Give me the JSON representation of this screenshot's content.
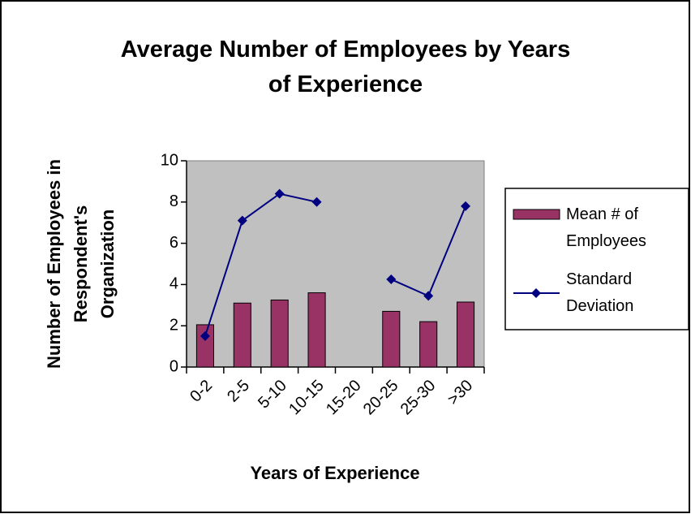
{
  "chart_data": {
    "type": "bar-line",
    "title": "Average Number of Employees by Years of Experience",
    "xlabel": "Years of Experience",
    "ylabel": "Number of Employees in Respondent's Organization",
    "categories": [
      "0-2",
      "2-5",
      "5-10",
      "10-15",
      "15-20",
      "20-25",
      "25-30",
      ">30"
    ],
    "series": [
      {
        "name": "Mean # of Employees",
        "type": "bar",
        "color": "#993366",
        "values": [
          2.05,
          3.1,
          3.25,
          3.6,
          null,
          2.7,
          2.2,
          3.15
        ]
      },
      {
        "name": "Standard Deviation",
        "type": "line",
        "color": "#000080",
        "values": [
          1.5,
          7.1,
          8.4,
          8.0,
          null,
          4.25,
          3.45,
          7.8
        ]
      }
    ],
    "ylim": [
      0,
      10
    ],
    "yticks": [
      0,
      2,
      4,
      6,
      8,
      10
    ],
    "legend": "right"
  }
}
